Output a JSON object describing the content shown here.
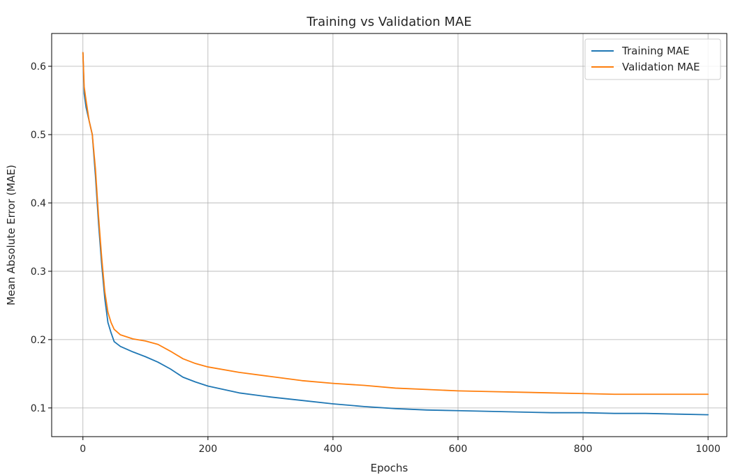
{
  "chart_data": {
    "type": "line",
    "title": "Training vs Validation MAE",
    "xlabel": "Epochs",
    "ylabel": "Mean Absolute Error (MAE)",
    "xlim": [
      -50,
      1030
    ],
    "ylim": [
      0.058,
      0.648
    ],
    "xticks": [
      0,
      200,
      400,
      600,
      800,
      1000
    ],
    "yticks": [
      0.1,
      0.2,
      0.3,
      0.4,
      0.5,
      0.6
    ],
    "xtick_labels": [
      "0",
      "200",
      "400",
      "600",
      "800",
      "1000"
    ],
    "ytick_labels": [
      "0.1",
      "0.2",
      "0.3",
      "0.4",
      "0.5",
      "0.6"
    ],
    "grid": true,
    "legend_position": "top-right",
    "series": [
      {
        "name": "Training MAE",
        "color": "#1f77b4",
        "x": [
          0,
          2,
          5,
          10,
          15,
          20,
          25,
          30,
          35,
          40,
          45,
          50,
          60,
          80,
          100,
          120,
          140,
          160,
          180,
          200,
          250,
          300,
          350,
          400,
          450,
          500,
          550,
          600,
          650,
          700,
          750,
          800,
          850,
          900,
          950,
          1000
        ],
        "y": [
          0.62,
          0.56,
          0.54,
          0.52,
          0.5,
          0.44,
          0.37,
          0.31,
          0.26,
          0.225,
          0.21,
          0.197,
          0.19,
          0.182,
          0.175,
          0.167,
          0.157,
          0.145,
          0.138,
          0.132,
          0.122,
          0.116,
          0.111,
          0.106,
          0.102,
          0.099,
          0.097,
          0.096,
          0.095,
          0.094,
          0.093,
          0.093,
          0.092,
          0.092,
          0.091,
          0.09
        ]
      },
      {
        "name": "Validation MAE",
        "color": "#ff7f0e",
        "x": [
          0,
          2,
          5,
          10,
          15,
          20,
          25,
          30,
          35,
          40,
          45,
          50,
          60,
          80,
          100,
          120,
          140,
          160,
          180,
          200,
          250,
          300,
          350,
          400,
          450,
          500,
          550,
          600,
          650,
          700,
          750,
          800,
          850,
          900,
          950,
          1000
        ],
        "y": [
          0.62,
          0.57,
          0.55,
          0.52,
          0.5,
          0.45,
          0.38,
          0.32,
          0.27,
          0.24,
          0.225,
          0.215,
          0.207,
          0.201,
          0.198,
          0.193,
          0.183,
          0.172,
          0.165,
          0.16,
          0.152,
          0.146,
          0.14,
          0.136,
          0.133,
          0.129,
          0.127,
          0.125,
          0.124,
          0.123,
          0.122,
          0.121,
          0.12,
          0.12,
          0.12,
          0.12
        ]
      }
    ]
  }
}
